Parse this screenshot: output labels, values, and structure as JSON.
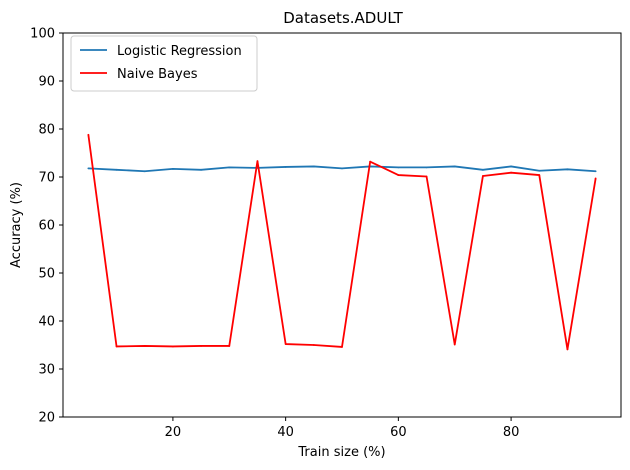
{
  "chart_data": {
    "type": "line",
    "title": "Datasets.ADULT",
    "xlabel": "Train size (%)",
    "ylabel": "Accuracy (%)",
    "xlim": [
      0.5,
      99.5
    ],
    "ylim": [
      20,
      100
    ],
    "xticks": [
      20,
      40,
      60,
      80
    ],
    "yticks": [
      20,
      30,
      40,
      50,
      60,
      70,
      80,
      90,
      100
    ],
    "grid": false,
    "legend_position": "top-left",
    "x": [
      5,
      10,
      15,
      20,
      25,
      30,
      35,
      40,
      45,
      50,
      55,
      60,
      65,
      70,
      75,
      80,
      85,
      90,
      95
    ],
    "series": [
      {
        "name": "Logistic Regression",
        "color": "#1f77b4",
        "values": [
          71.8,
          71.5,
          71.2,
          71.7,
          71.5,
          72.0,
          71.9,
          72.1,
          72.2,
          71.8,
          72.2,
          72.0,
          72.0,
          72.2,
          71.5,
          72.2,
          71.3,
          71.6,
          71.2
        ]
      },
      {
        "name": "Naive Bayes",
        "color": "#ff0000",
        "values": [
          78.8,
          34.7,
          34.8,
          34.7,
          34.8,
          34.8,
          73.3,
          35.2,
          35.0,
          34.6,
          73.2,
          70.4,
          70.1,
          35.1,
          70.2,
          70.9,
          70.4,
          34.1,
          69.7
        ]
      }
    ]
  }
}
